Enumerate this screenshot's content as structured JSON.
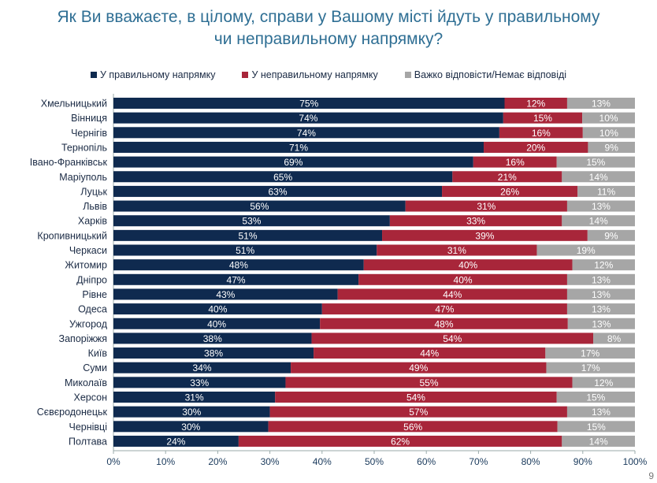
{
  "title": [
    "Як Ви вважаєте, в цілому, справи у Вашому місті йдуть у правильному",
    "чи неправильному напрямку?"
  ],
  "page_number": "9",
  "chart_data": {
    "type": "bar",
    "orientation": "horizontal",
    "stacked": true,
    "legend_position": "top",
    "grid": false,
    "xlim": [
      0,
      100
    ],
    "x_ticks": [
      "0%",
      "10%",
      "20%",
      "30%",
      "40%",
      "50%",
      "60%",
      "70%",
      "80%",
      "90%",
      "100%"
    ],
    "categories": [
      "Хмельницький",
      "Вінниця",
      "Чернігів",
      "Тернопіль",
      "Івано-Франківськ",
      "Маріуполь",
      "Луцьк",
      "Львів",
      "Харків",
      "Кропивницький",
      "Черкаси",
      "Житомир",
      "Дніпро",
      "Рівне",
      "Одеса",
      "Ужгород",
      "Запоріжжя",
      "Київ",
      "Суми",
      "Миколаїв",
      "Херсон",
      "Сєвєродонецьк",
      "Чернівці",
      "Полтава"
    ],
    "series": [
      {
        "name": "У правильному напрямку",
        "color": "#0f2a4f",
        "values": [
          75,
          74,
          74,
          71,
          69,
          65,
          63,
          56,
          53,
          51,
          51,
          48,
          47,
          43,
          40,
          40,
          38,
          38,
          34,
          33,
          31,
          30,
          30,
          24
        ]
      },
      {
        "name": "У неправильному напрямку",
        "color": "#a8263a",
        "values": [
          12,
          15,
          16,
          20,
          16,
          21,
          26,
          31,
          33,
          39,
          31,
          40,
          40,
          44,
          47,
          48,
          54,
          44,
          49,
          55,
          54,
          57,
          56,
          62
        ]
      },
      {
        "name": "Важко відповісти/Немає відповіді",
        "color": "#a6a6a6",
        "values": [
          13,
          10,
          10,
          9,
          15,
          14,
          11,
          13,
          14,
          9,
          19,
          12,
          13,
          13,
          13,
          13,
          8,
          17,
          17,
          12,
          15,
          13,
          15,
          14
        ]
      }
    ]
  }
}
